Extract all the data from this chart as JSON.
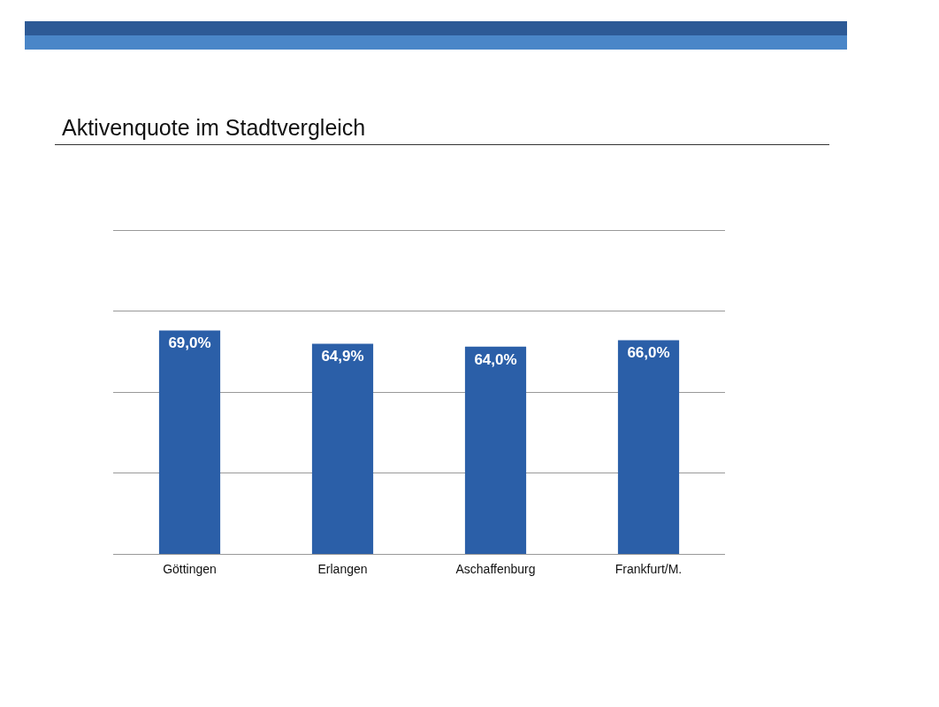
{
  "chart_data": {
    "type": "bar",
    "title": "Aktivenquote im Stadtvergleich",
    "categories": [
      "Göttingen",
      "Erlangen",
      "Aschaffenburg",
      "Frankfurt/M."
    ],
    "values": [
      69.0,
      64.9,
      64.0,
      66.0
    ],
    "value_labels": [
      "69,0%",
      "64,9%",
      "64,0%",
      "66,0%"
    ],
    "color": "#2b5fa8",
    "ylim": [
      0,
      100
    ],
    "yticks": [
      {
        "value": 0,
        "label": null
      },
      {
        "value": 25,
        "label": null
      },
      {
        "value": 50,
        "label": null
      },
      {
        "value": 75,
        "label": null
      },
      {
        "value": 100,
        "label": null
      }
    ],
    "grid": "y",
    "tick_labels": "x"
  }
}
